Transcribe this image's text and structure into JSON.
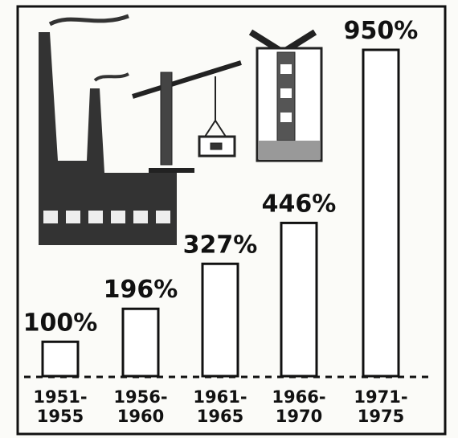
{
  "chart_data": {
    "type": "bar",
    "categories": [
      "1951-\n1955",
      "1956-\n1960",
      "1961-\n1965",
      "1966-\n1970",
      "1971-\n1975"
    ],
    "values": [
      100,
      196,
      327,
      446,
      950
    ],
    "value_labels": [
      "100%",
      "196%",
      "327%",
      "446%",
      "950%"
    ],
    "color": "#ffffff"
  }
}
